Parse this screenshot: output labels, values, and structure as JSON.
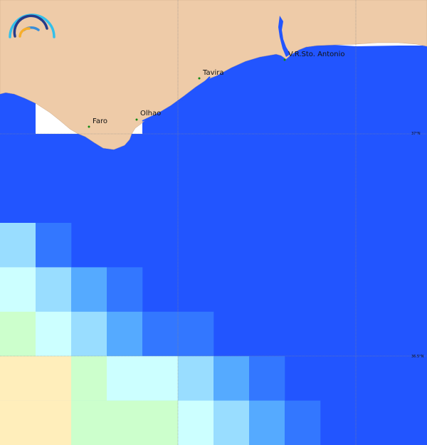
{
  "map": {
    "colors": {
      "sea": "#2255ff",
      "land": "#eecba8",
      "nodata": "#ffffff",
      "gridline": "#888888",
      "city_marker": "#118811"
    },
    "cities": [
      {
        "name": "Faro"
      },
      {
        "name": "Olhao"
      },
      {
        "name": "Tavira"
      },
      {
        "name": "V.R.Sto. Antonio"
      }
    ],
    "latitude_labels": [
      "37°N",
      "36.5°N"
    ],
    "field": {
      "palette": [
        "#2255ff",
        "#3377ff",
        "#55aaff",
        "#99ddff",
        "#ccffff",
        "#ccffcc",
        "#ffeebb"
      ],
      "rows": [
        [
          3,
          1,
          0,
          0,
          0,
          0,
          0,
          0,
          0,
          0,
          0,
          0
        ],
        [
          4,
          3,
          2,
          1,
          0,
          0,
          0,
          0,
          0,
          0,
          0,
          0
        ],
        [
          5,
          4,
          3,
          2,
          1,
          1,
          0,
          0,
          0,
          0,
          0,
          0
        ],
        [
          6,
          6,
          5,
          4,
          4,
          3,
          2,
          1,
          0,
          0,
          0,
          0
        ],
        [
          6,
          6,
          5,
          5,
          5,
          4,
          3,
          2,
          1,
          0,
          0,
          0
        ]
      ]
    },
    "logo": {
      "icon": "arc-waves-logo"
    }
  }
}
